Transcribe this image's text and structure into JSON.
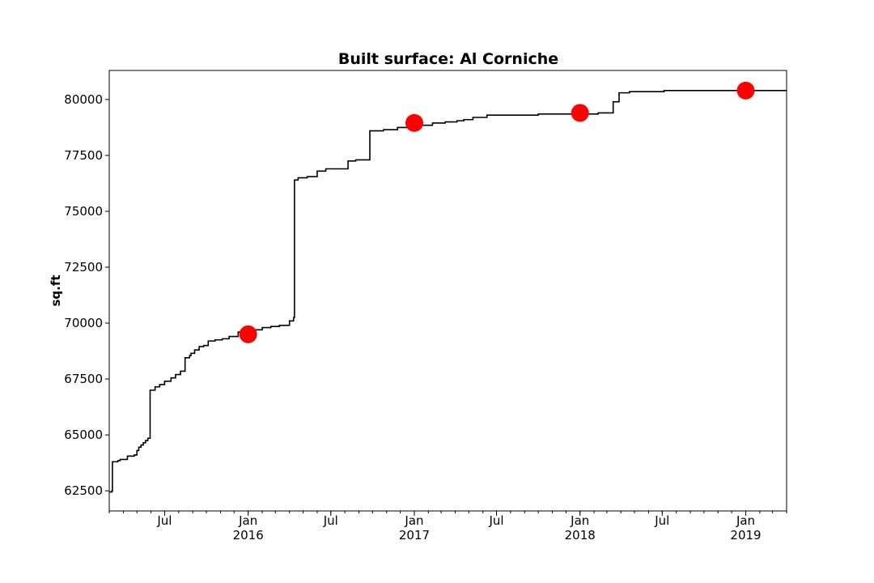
{
  "chart_data": {
    "type": "line",
    "title": "Built surface: Al Corniche",
    "xlabel": "",
    "ylabel": "sq.ft",
    "xlim": [
      "2015-03-01",
      "2019-04-01"
    ],
    "ylim": [
      61600,
      81300
    ],
    "yticks": [
      62500,
      65000,
      67500,
      70000,
      72500,
      75000,
      77500,
      80000
    ],
    "ytick_labels": [
      "62500",
      "65000",
      "67500",
      "70000",
      "72500",
      "75000",
      "77500",
      "80000"
    ],
    "xticks": [
      {
        "date": "2015-07-01",
        "label": "Jul",
        "sub": ""
      },
      {
        "date": "2016-01-01",
        "label": "Jan",
        "sub": "2016"
      },
      {
        "date": "2016-07-01",
        "label": "Jul",
        "sub": ""
      },
      {
        "date": "2017-01-01",
        "label": "Jan",
        "sub": "2017"
      },
      {
        "date": "2017-07-01",
        "label": "Jul",
        "sub": ""
      },
      {
        "date": "2018-01-01",
        "label": "Jan",
        "sub": "2018"
      },
      {
        "date": "2018-07-01",
        "label": "Jul",
        "sub": ""
      },
      {
        "date": "2019-01-01",
        "label": "Jan",
        "sub": "2019"
      }
    ],
    "grid": false,
    "series": [
      {
        "line_color": "#000000",
        "step": true,
        "x": [
          "2015-03-01",
          "2015-03-06",
          "2015-03-07",
          "2015-03-08",
          "2015-03-20",
          "2015-03-25",
          "2015-04-10",
          "2015-04-25",
          "2015-05-01",
          "2015-05-05",
          "2015-05-10",
          "2015-05-15",
          "2015-05-20",
          "2015-05-25",
          "2015-05-30",
          "2015-06-03",
          "2015-06-10",
          "2015-06-20",
          "2015-07-01",
          "2015-07-15",
          "2015-07-25",
          "2015-08-05",
          "2015-08-15",
          "2015-08-25",
          "2015-08-28",
          "2015-09-05",
          "2015-09-15",
          "2015-09-25",
          "2015-10-05",
          "2015-10-20",
          "2015-11-05",
          "2015-11-20",
          "2015-12-10",
          "2016-01-10",
          "2016-02-01",
          "2016-02-20",
          "2016-03-10",
          "2016-04-01",
          "2016-04-10",
          "2016-04-12",
          "2016-04-20",
          "2016-05-10",
          "2016-06-01",
          "2016-06-20",
          "2016-08-08",
          "2016-08-25",
          "2016-09-25",
          "2016-10-25",
          "2016-11-25",
          "2017-01-01",
          "2017-02-10",
          "2017-03-10",
          "2017-04-05",
          "2017-04-20",
          "2017-05-10",
          "2017-06-10",
          "2017-10-01",
          "2018-02-10",
          "2018-03-15",
          "2018-03-28",
          "2018-04-20",
          "2018-07-05",
          "2018-09-01",
          "2019-04-01"
        ],
        "y": [
          62450,
          62450,
          62500,
          63800,
          63850,
          63900,
          64050,
          64100,
          64300,
          64450,
          64550,
          64650,
          64750,
          64850,
          67000,
          67000,
          67150,
          67250,
          67400,
          67550,
          67700,
          67850,
          68450,
          68550,
          68650,
          68800,
          68950,
          69000,
          69200,
          69250,
          69300,
          69400,
          69600,
          69700,
          69800,
          69850,
          69900,
          70100,
          70250,
          76400,
          76500,
          76550,
          76800,
          76900,
          77250,
          77300,
          78600,
          78650,
          78750,
          78850,
          78950,
          79000,
          79050,
          79100,
          79200,
          79300,
          79350,
          79400,
          79900,
          80300,
          80350,
          80400,
          80400,
          80400
        ]
      }
    ],
    "markers": {
      "color": "#ff0000",
      "x": [
        "2016-01-01",
        "2017-01-01",
        "2018-01-01",
        "2019-01-01"
      ],
      "y": [
        69500,
        78950,
        79400,
        80400
      ]
    }
  }
}
